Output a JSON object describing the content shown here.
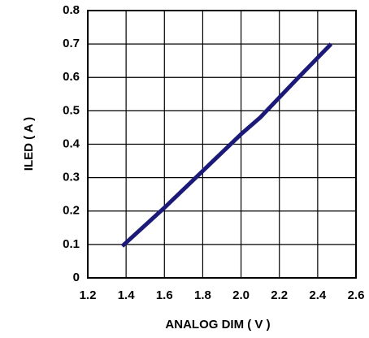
{
  "chart_data": {
    "type": "line",
    "xlabel": "ANALOG DIM ( V )",
    "ylabel": "ILED ( A )",
    "x": [
      1.38,
      1.6,
      1.8,
      2.0,
      2.1,
      2.2,
      2.3,
      2.47
    ],
    "series": [
      {
        "color": "#1c1a78",
        "values": [
          0.095,
          0.21,
          0.32,
          0.43,
          0.48,
          0.54,
          0.6,
          0.7
        ]
      }
    ],
    "xlim": [
      1.2,
      2.6
    ],
    "xticks": [
      1.2,
      1.4,
      1.6,
      1.8,
      {
        "value": 2,
        "label": "2.0"
      },
      2.2,
      2.4,
      2.6
    ],
    "ylim": [
      0,
      0.8
    ],
    "yticks": [
      0,
      0.1,
      0.2,
      0.3,
      0.4,
      0.5,
      0.6,
      0.7,
      0.8
    ],
    "grid": true
  }
}
